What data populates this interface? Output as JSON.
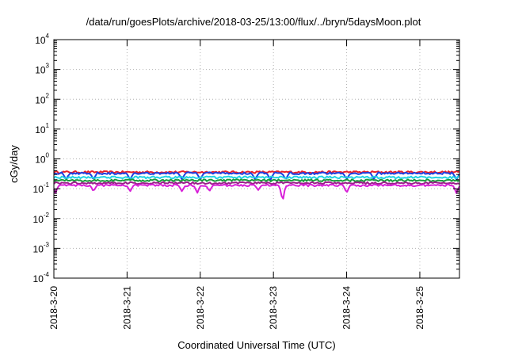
{
  "chart_data": {
    "type": "line",
    "title": "/data/run/goesPlots/archive/2018-03-25/13:00/flux/../bryn/5daysMoon.plot",
    "xlabel": "Coordinated Universal Time (UTC)",
    "ylabel": "cGy/day",
    "y_scale": "log",
    "ylim": [
      0.0001,
      10000
    ],
    "y_ticks": [
      {
        "base": "10",
        "exp": "-4",
        "value": 0.0001
      },
      {
        "base": "10",
        "exp": "-3",
        "value": 0.001
      },
      {
        "base": "10",
        "exp": "-2",
        "value": 0.01
      },
      {
        "base": "10",
        "exp": "-1",
        "value": 0.1
      },
      {
        "base": "10",
        "exp": "0",
        "value": 1
      },
      {
        "base": "10",
        "exp": "1",
        "value": 10
      },
      {
        "base": "10",
        "exp": "2",
        "value": 100
      },
      {
        "base": "10",
        "exp": "3",
        "value": 1000
      },
      {
        "base": "10",
        "exp": "4",
        "value": 10000
      }
    ],
    "x_range": [
      "2018-03-20 00:00",
      "2018-03-25 13:00"
    ],
    "x_ticks": [
      "2018-3-20",
      "2018-3-21",
      "2018-3-22",
      "2018-3-23",
      "2018-3-24",
      "2018-3-25"
    ],
    "grid": true,
    "legend": "none",
    "series": [
      {
        "color": "#e8202a",
        "level": 0.36,
        "dips": []
      },
      {
        "color": "#1f3fe0",
        "level": 0.33,
        "dips": [
          {
            "x": "2018-03-20 04:00",
            "y": 0.2
          },
          {
            "x": "2018-03-20 13:00",
            "y": 0.2
          },
          {
            "x": "2018-03-21 01:00",
            "y": 0.2
          },
          {
            "x": "2018-03-21 18:00",
            "y": 0.2
          },
          {
            "x": "2018-03-22 00:00",
            "y": 0.2
          },
          {
            "x": "2018-03-22 18:00",
            "y": 0.2
          },
          {
            "x": "2018-03-22 23:00",
            "y": 0.19
          },
          {
            "x": "2018-03-23 04:00",
            "y": 0.2
          },
          {
            "x": "2018-03-24 00:00",
            "y": 0.2
          },
          {
            "x": "2018-03-24 09:00",
            "y": 0.2
          },
          {
            "x": "2018-03-25 12:00",
            "y": 0.2
          }
        ]
      },
      {
        "color": "#22d4e4",
        "level": 0.24,
        "dips": []
      },
      {
        "color": "#1a9a3a",
        "level": 0.19,
        "dips": []
      },
      {
        "color": "#9a1f8a",
        "level": 0.155,
        "dips": []
      },
      {
        "color": "#d81fd8",
        "level": 0.13,
        "dips": [
          {
            "x": "2018-03-20 00:30",
            "y": 0.07
          },
          {
            "x": "2018-03-20 13:00",
            "y": 0.08
          },
          {
            "x": "2018-03-21 01:00",
            "y": 0.08
          },
          {
            "x": "2018-03-21 18:00",
            "y": 0.08
          },
          {
            "x": "2018-03-21 23:00",
            "y": 0.07
          },
          {
            "x": "2018-03-22 03:00",
            "y": 0.08
          },
          {
            "x": "2018-03-22 19:00",
            "y": 0.09
          },
          {
            "x": "2018-03-23 03:00",
            "y": 0.03
          },
          {
            "x": "2018-03-24 00:00",
            "y": 0.07
          },
          {
            "x": "2018-03-25 12:00",
            "y": 0.07
          }
        ]
      }
    ]
  }
}
